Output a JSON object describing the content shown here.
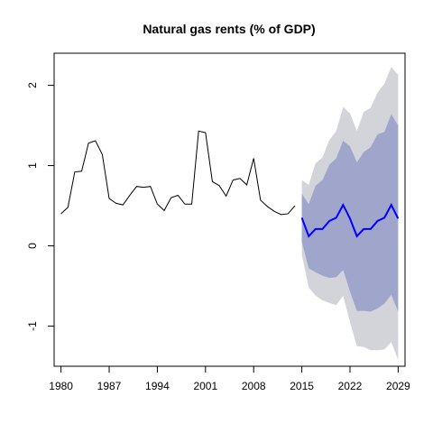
{
  "chart_data": {
    "type": "line",
    "title": "Natural gas rents (% of GDP)",
    "xlabel": "",
    "ylabel": "",
    "xlim": [
      1979,
      2030
    ],
    "ylim": [
      -1.5,
      2.4
    ],
    "x_ticks": [
      1980,
      1987,
      1994,
      2001,
      2008,
      2015,
      2022,
      2029
    ],
    "x_tick_labels": [
      "1980",
      "1987",
      "1994",
      "2001",
      "2008",
      "2015",
      "2022",
      "2029"
    ],
    "y_ticks": [
      -1,
      0,
      1,
      2
    ],
    "y_tick_labels": [
      "-1",
      "0",
      "1",
      "2"
    ],
    "grid": false,
    "legend": "none",
    "history": {
      "x": [
        1980,
        1981,
        1982,
        1983,
        1984,
        1985,
        1986,
        1987,
        1988,
        1989,
        1990,
        1991,
        1992,
        1993,
        1994,
        1995,
        1996,
        1997,
        1998,
        1999,
        2000,
        2001,
        2002,
        2003,
        2004,
        2005,
        2006,
        2007,
        2008,
        2009,
        2010,
        2011,
        2012,
        2013,
        2014
      ],
      "y": [
        0.4,
        0.48,
        0.92,
        0.93,
        1.28,
        1.31,
        1.14,
        0.59,
        0.53,
        0.51,
        0.63,
        0.74,
        0.73,
        0.74,
        0.52,
        0.44,
        0.6,
        0.63,
        0.52,
        0.52,
        1.43,
        1.41,
        0.8,
        0.75,
        0.62,
        0.82,
        0.84,
        0.76,
        1.09,
        0.57,
        0.49,
        0.43,
        0.39,
        0.4,
        0.5
      ]
    },
    "forecast": {
      "x": [
        2015,
        2016,
        2017,
        2018,
        2019,
        2020,
        2021,
        2022,
        2023,
        2024,
        2025,
        2026,
        2027,
        2028,
        2029
      ],
      "mean": [
        0.35,
        0.12,
        0.21,
        0.21,
        0.31,
        0.35,
        0.51,
        0.34,
        0.12,
        0.21,
        0.21,
        0.31,
        0.35,
        0.51,
        0.34
      ],
      "lo80": [
        0.05,
        -0.28,
        -0.33,
        -0.37,
        -0.4,
        -0.39,
        -0.3,
        -0.57,
        -0.81,
        -0.81,
        -0.82,
        -0.78,
        -0.72,
        -0.61,
        -0.82
      ],
      "hi80": [
        0.65,
        0.52,
        0.75,
        0.82,
        1.01,
        1.09,
        1.31,
        1.24,
        1.04,
        1.17,
        1.23,
        1.39,
        1.42,
        1.64,
        1.5
      ],
      "lo95": [
        -0.11,
        -0.52,
        -0.62,
        -0.68,
        -0.71,
        -0.74,
        -0.62,
        -0.95,
        -1.25,
        -1.26,
        -1.3,
        -1.3,
        -1.29,
        -1.2,
        -1.42
      ],
      "hi95": [
        0.82,
        0.76,
        1.03,
        1.1,
        1.32,
        1.43,
        1.73,
        1.65,
        1.43,
        1.67,
        1.72,
        1.91,
        2.02,
        2.23,
        2.13
      ]
    },
    "colors": {
      "history_line": "#000000",
      "forecast_line": "#0000ff",
      "band_80": "#a0a5cc",
      "band_95": "#d3d4da",
      "frame": "#000000"
    }
  }
}
